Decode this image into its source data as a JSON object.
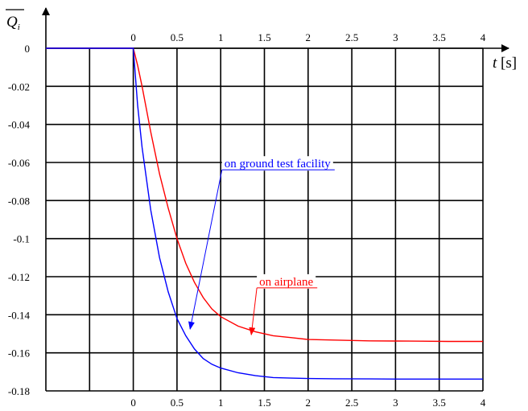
{
  "chart_data": {
    "type": "line",
    "title": "",
    "xlabel": "t [s]",
    "ylabel": "Q_i",
    "xlim": [
      -1,
      4
    ],
    "ylim": [
      -0.18,
      0
    ],
    "grid": true,
    "x_ticks": [
      0,
      0.5,
      1,
      1.5,
      2,
      2.5,
      3,
      3.5,
      4
    ],
    "y_ticks": [
      0,
      -0.02,
      -0.04,
      -0.06,
      -0.08,
      -0.1,
      -0.12,
      -0.14,
      -0.16,
      -0.18
    ],
    "x_tick_labels": [
      "0",
      "0.5",
      "1",
      "1.5",
      "2",
      "2.5",
      "3",
      "3.5",
      "4"
    ],
    "y_tick_labels": [
      "0",
      "-0.02",
      "-0.04",
      "-0.06",
      "-0.08",
      "-0.1",
      "-0.12",
      "-0.14",
      "-0.16",
      "-0.18"
    ],
    "series": [
      {
        "name": "on airplane",
        "color": "#ff0000",
        "x": [
          -1,
          0,
          0.05,
          0.1,
          0.2,
          0.3,
          0.4,
          0.5,
          0.6,
          0.7,
          0.8,
          0.9,
          1.0,
          1.2,
          1.4,
          1.6,
          1.8,
          2.0,
          2.2,
          2.5,
          2.7,
          3.0,
          3.3,
          3.6,
          4.0
        ],
        "y": [
          0,
          0,
          -0.009,
          -0.02,
          -0.044,
          -0.066,
          -0.084,
          -0.1,
          -0.113,
          -0.123,
          -0.131,
          -0.137,
          -0.141,
          -0.146,
          -0.149,
          -0.151,
          -0.152,
          -0.153,
          -0.1532,
          -0.1535,
          -0.1537,
          -0.1538,
          -0.1539,
          -0.154,
          -0.154
        ]
      },
      {
        "name": "on ground test facility",
        "color": "#0000ff",
        "x": [
          -1,
          0,
          0.05,
          0.1,
          0.2,
          0.3,
          0.4,
          0.5,
          0.6,
          0.7,
          0.8,
          0.9,
          1.0,
          1.2,
          1.4,
          1.6,
          1.8,
          2.0,
          2.3,
          2.7,
          3.0,
          3.5,
          4.0
        ],
        "y": [
          0,
          0,
          -0.03,
          -0.052,
          -0.085,
          -0.11,
          -0.128,
          -0.142,
          -0.151,
          -0.158,
          -0.163,
          -0.166,
          -0.168,
          -0.1705,
          -0.172,
          -0.173,
          -0.1733,
          -0.1735,
          -0.1736,
          -0.1737,
          -0.1738,
          -0.1738,
          -0.1738
        ]
      }
    ],
    "annotations": [
      {
        "text": "on ground test facility",
        "color": "#0000ff",
        "label_x": 1.65,
        "label_y": -0.0605,
        "arrow_to": [
          0.65,
          -0.1475
        ]
      },
      {
        "text": "on airplane",
        "color": "#ff0000",
        "label_x": 1.75,
        "label_y": -0.1225,
        "arrow_to": [
          1.35,
          -0.1505
        ]
      }
    ]
  }
}
